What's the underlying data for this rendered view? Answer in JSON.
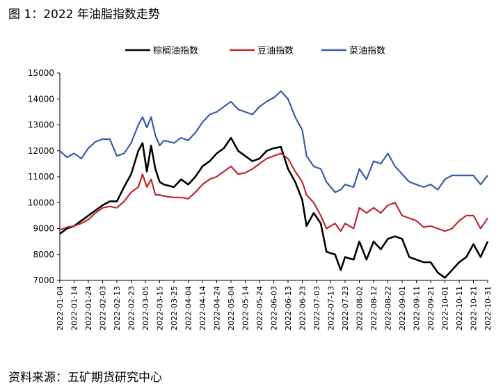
{
  "figure_title": "图 1：2022 年油脂指数走势",
  "source": "资料来源：五矿期货研究中心",
  "chart_data": {
    "type": "line",
    "title": "",
    "xlabel": "",
    "ylabel": "",
    "ylim": [
      7000,
      15000
    ],
    "y_ticks": [
      "15000",
      "14000",
      "13000",
      "12000",
      "11000",
      "10000",
      "9000",
      "8000",
      "7000"
    ],
    "x_ticks": [
      "2022-01-04",
      "2022-01-14",
      "2022-01-24",
      "2022-02-03",
      "2022-02-13",
      "2022-02-23",
      "2022-03-05",
      "2022-03-15",
      "2022-03-25",
      "2022-04-04",
      "2022-04-14",
      "2022-04-24",
      "2022-05-04",
      "2022-05-14",
      "2022-05-24",
      "2022-06-03",
      "2022-06-13",
      "2022-06-23",
      "2022-07-03",
      "2022-07-13",
      "2022-07-23",
      "2022-08-02",
      "2022-08-12",
      "2022-08-22",
      "2022-09-01",
      "2022-09-11",
      "2022-09-21",
      "2022-10-01",
      "2022-10-11",
      "2022-10-21",
      "2022-10-31"
    ],
    "legend_position": "top",
    "grid": false,
    "x_start": "2022-01-04",
    "series": [
      {
        "name": "棕榈油指数",
        "color": "#000000",
        "points": [
          [
            "2022-01-04",
            8800
          ],
          [
            "2022-01-09",
            9000
          ],
          [
            "2022-01-14",
            9100
          ],
          [
            "2022-01-19",
            9300
          ],
          [
            "2022-01-24",
            9500
          ],
          [
            "2022-01-29",
            9700
          ],
          [
            "2022-02-03",
            9900
          ],
          [
            "2022-02-08",
            10050
          ],
          [
            "2022-02-13",
            10050
          ],
          [
            "2022-02-18",
            10600
          ],
          [
            "2022-02-23",
            11100
          ],
          [
            "2022-02-28",
            12000
          ],
          [
            "2022-03-03",
            12300
          ],
          [
            "2022-03-06",
            11200
          ],
          [
            "2022-03-09",
            12200
          ],
          [
            "2022-03-12",
            11300
          ],
          [
            "2022-03-15",
            10800
          ],
          [
            "2022-03-18",
            10700
          ],
          [
            "2022-03-25",
            10600
          ],
          [
            "2022-03-30",
            10900
          ],
          [
            "2022-04-04",
            10700
          ],
          [
            "2022-04-09",
            11000
          ],
          [
            "2022-04-14",
            11400
          ],
          [
            "2022-04-19",
            11600
          ],
          [
            "2022-04-24",
            11900
          ],
          [
            "2022-04-29",
            12100
          ],
          [
            "2022-05-04",
            12500
          ],
          [
            "2022-05-09",
            12000
          ],
          [
            "2022-05-14",
            11800
          ],
          [
            "2022-05-19",
            11600
          ],
          [
            "2022-05-24",
            11700
          ],
          [
            "2022-05-29",
            12000
          ],
          [
            "2022-06-03",
            12100
          ],
          [
            "2022-06-08",
            12150
          ],
          [
            "2022-06-13",
            11300
          ],
          [
            "2022-06-18",
            10800
          ],
          [
            "2022-06-23",
            10100
          ],
          [
            "2022-06-26",
            9100
          ],
          [
            "2022-07-01",
            9600
          ],
          [
            "2022-07-06",
            9200
          ],
          [
            "2022-07-10",
            8100
          ],
          [
            "2022-07-16",
            8000
          ],
          [
            "2022-07-20",
            7400
          ],
          [
            "2022-07-23",
            7900
          ],
          [
            "2022-07-29",
            7800
          ],
          [
            "2022-08-02",
            8500
          ],
          [
            "2022-08-07",
            7800
          ],
          [
            "2022-08-12",
            8500
          ],
          [
            "2022-08-17",
            8200
          ],
          [
            "2022-08-22",
            8600
          ],
          [
            "2022-08-27",
            8700
          ],
          [
            "2022-09-01",
            8600
          ],
          [
            "2022-09-06",
            7900
          ],
          [
            "2022-09-11",
            7800
          ],
          [
            "2022-09-16",
            7700
          ],
          [
            "2022-09-21",
            7700
          ],
          [
            "2022-09-26",
            7300
          ],
          [
            "2022-10-01",
            7100
          ],
          [
            "2022-10-06",
            7400
          ],
          [
            "2022-10-11",
            7700
          ],
          [
            "2022-10-16",
            7900
          ],
          [
            "2022-10-21",
            8400
          ],
          [
            "2022-10-26",
            7900
          ],
          [
            "2022-10-31",
            8500
          ]
        ]
      },
      {
        "name": "豆油指数",
        "color": "#C0272D",
        "points": [
          [
            "2022-01-04",
            8950
          ],
          [
            "2022-01-09",
            9050
          ],
          [
            "2022-01-14",
            9100
          ],
          [
            "2022-01-19",
            9200
          ],
          [
            "2022-01-24",
            9350
          ],
          [
            "2022-01-29",
            9600
          ],
          [
            "2022-02-03",
            9800
          ],
          [
            "2022-02-08",
            9850
          ],
          [
            "2022-02-13",
            9800
          ],
          [
            "2022-02-18",
            10050
          ],
          [
            "2022-02-23",
            10400
          ],
          [
            "2022-02-28",
            10600
          ],
          [
            "2022-03-03",
            11100
          ],
          [
            "2022-03-06",
            10600
          ],
          [
            "2022-03-09",
            10900
          ],
          [
            "2022-03-12",
            10300
          ],
          [
            "2022-03-15",
            10300
          ],
          [
            "2022-03-18",
            10250
          ],
          [
            "2022-03-25",
            10200
          ],
          [
            "2022-03-30",
            10200
          ],
          [
            "2022-04-04",
            10150
          ],
          [
            "2022-04-09",
            10400
          ],
          [
            "2022-04-14",
            10700
          ],
          [
            "2022-04-19",
            10900
          ],
          [
            "2022-04-24",
            11000
          ],
          [
            "2022-04-29",
            11200
          ],
          [
            "2022-05-04",
            11400
          ],
          [
            "2022-05-09",
            11100
          ],
          [
            "2022-05-14",
            11150
          ],
          [
            "2022-05-19",
            11300
          ],
          [
            "2022-05-24",
            11500
          ],
          [
            "2022-05-29",
            11700
          ],
          [
            "2022-06-03",
            11800
          ],
          [
            "2022-06-08",
            11900
          ],
          [
            "2022-06-13",
            11700
          ],
          [
            "2022-06-18",
            11200
          ],
          [
            "2022-06-23",
            10800
          ],
          [
            "2022-06-26",
            10300
          ],
          [
            "2022-07-01",
            10000
          ],
          [
            "2022-07-06",
            9500
          ],
          [
            "2022-07-10",
            9000
          ],
          [
            "2022-07-16",
            9200
          ],
          [
            "2022-07-20",
            8900
          ],
          [
            "2022-07-23",
            9200
          ],
          [
            "2022-07-29",
            9000
          ],
          [
            "2022-08-02",
            9800
          ],
          [
            "2022-08-07",
            9600
          ],
          [
            "2022-08-12",
            9800
          ],
          [
            "2022-08-17",
            9600
          ],
          [
            "2022-08-22",
            9900
          ],
          [
            "2022-08-27",
            10000
          ],
          [
            "2022-09-01",
            9500
          ],
          [
            "2022-09-06",
            9400
          ],
          [
            "2022-09-11",
            9300
          ],
          [
            "2022-09-16",
            9050
          ],
          [
            "2022-09-21",
            9100
          ],
          [
            "2022-09-26",
            9000
          ],
          [
            "2022-10-01",
            8900
          ],
          [
            "2022-10-06",
            9000
          ],
          [
            "2022-10-11",
            9300
          ],
          [
            "2022-10-16",
            9500
          ],
          [
            "2022-10-21",
            9500
          ],
          [
            "2022-10-26",
            9000
          ],
          [
            "2022-10-31",
            9400
          ]
        ]
      },
      {
        "name": "菜油指数",
        "color": "#3A5BA9",
        "points": [
          [
            "2022-01-04",
            12000
          ],
          [
            "2022-01-09",
            11750
          ],
          [
            "2022-01-14",
            11900
          ],
          [
            "2022-01-19",
            11700
          ],
          [
            "2022-01-24",
            12100
          ],
          [
            "2022-01-29",
            12350
          ],
          [
            "2022-02-03",
            12450
          ],
          [
            "2022-02-08",
            12450
          ],
          [
            "2022-02-13",
            11800
          ],
          [
            "2022-02-18",
            11900
          ],
          [
            "2022-02-23",
            12300
          ],
          [
            "2022-02-28",
            13000
          ],
          [
            "2022-03-03",
            13300
          ],
          [
            "2022-03-06",
            12900
          ],
          [
            "2022-03-09",
            13300
          ],
          [
            "2022-03-12",
            12600
          ],
          [
            "2022-03-15",
            12200
          ],
          [
            "2022-03-18",
            12400
          ],
          [
            "2022-03-25",
            12300
          ],
          [
            "2022-03-30",
            12500
          ],
          [
            "2022-04-04",
            12400
          ],
          [
            "2022-04-09",
            12700
          ],
          [
            "2022-04-14",
            13100
          ],
          [
            "2022-04-19",
            13400
          ],
          [
            "2022-04-24",
            13500
          ],
          [
            "2022-04-29",
            13700
          ],
          [
            "2022-05-04",
            13900
          ],
          [
            "2022-05-09",
            13600
          ],
          [
            "2022-05-14",
            13500
          ],
          [
            "2022-05-19",
            13400
          ],
          [
            "2022-05-24",
            13700
          ],
          [
            "2022-05-29",
            13900
          ],
          [
            "2022-06-03",
            14050
          ],
          [
            "2022-06-08",
            14300
          ],
          [
            "2022-06-13",
            14000
          ],
          [
            "2022-06-18",
            13300
          ],
          [
            "2022-06-23",
            12800
          ],
          [
            "2022-06-26",
            11800
          ],
          [
            "2022-07-01",
            11400
          ],
          [
            "2022-07-06",
            11300
          ],
          [
            "2022-07-10",
            10800
          ],
          [
            "2022-07-16",
            10400
          ],
          [
            "2022-07-20",
            10500
          ],
          [
            "2022-07-23",
            10700
          ],
          [
            "2022-07-29",
            10600
          ],
          [
            "2022-08-02",
            11300
          ],
          [
            "2022-08-07",
            10900
          ],
          [
            "2022-08-12",
            11600
          ],
          [
            "2022-08-17",
            11500
          ],
          [
            "2022-08-22",
            11900
          ],
          [
            "2022-08-27",
            11400
          ],
          [
            "2022-09-01",
            11100
          ],
          [
            "2022-09-06",
            10800
          ],
          [
            "2022-09-11",
            10700
          ],
          [
            "2022-09-16",
            10600
          ],
          [
            "2022-09-21",
            10700
          ],
          [
            "2022-09-26",
            10500
          ],
          [
            "2022-10-01",
            10900
          ],
          [
            "2022-10-06",
            11050
          ],
          [
            "2022-10-11",
            11050
          ],
          [
            "2022-10-16",
            11050
          ],
          [
            "2022-10-21",
            11050
          ],
          [
            "2022-10-26",
            10700
          ],
          [
            "2022-10-31",
            11050
          ]
        ]
      }
    ]
  }
}
